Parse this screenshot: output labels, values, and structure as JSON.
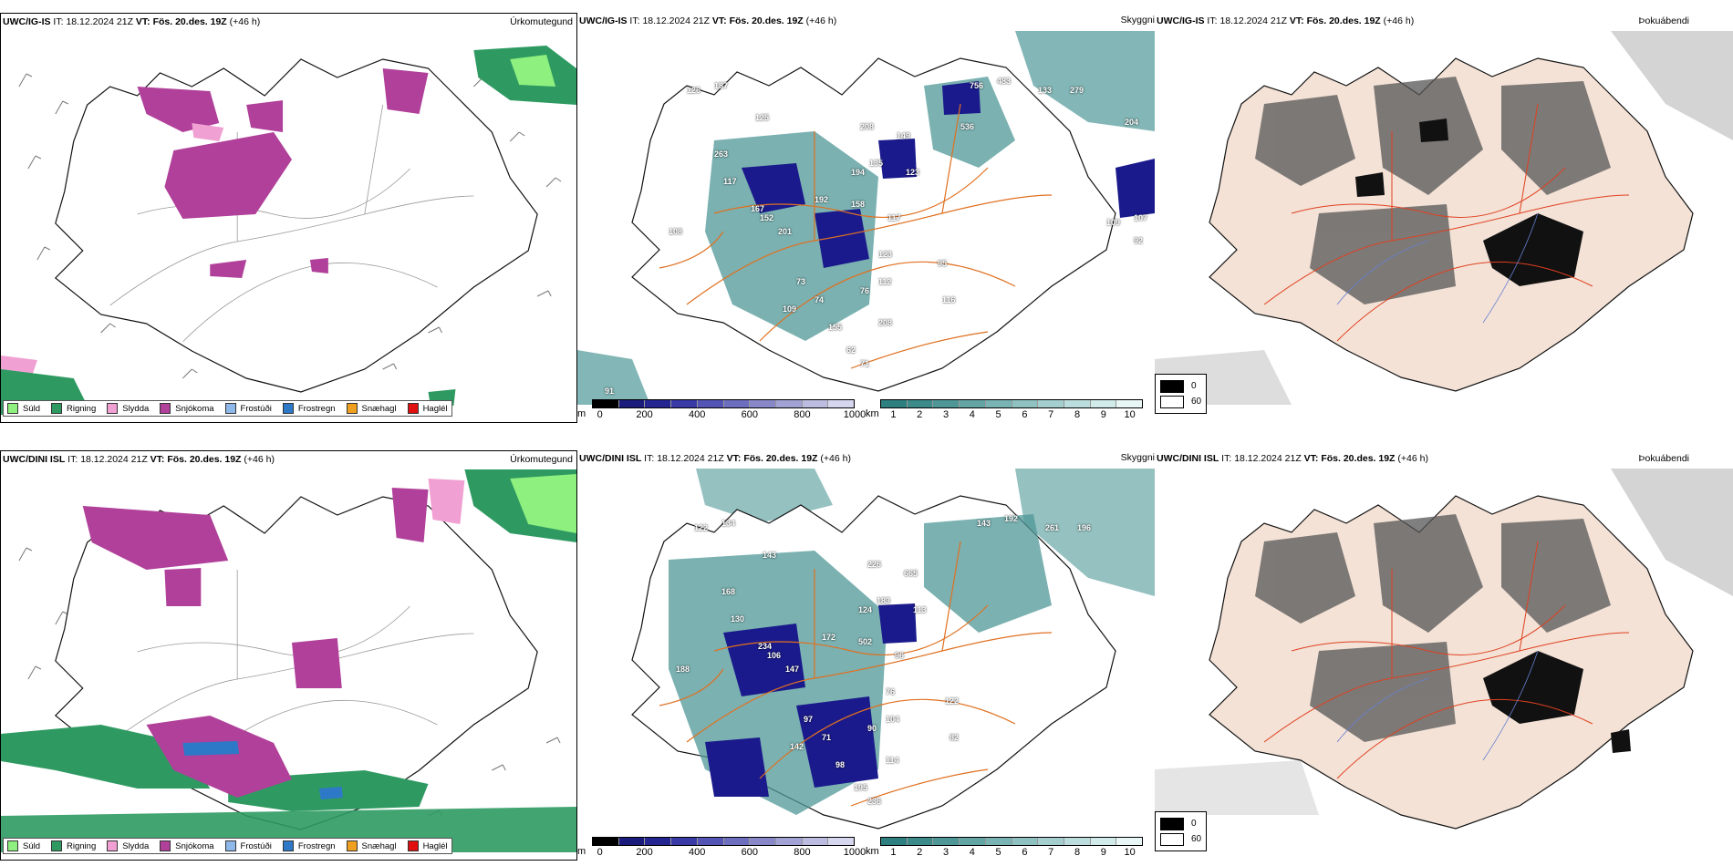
{
  "rows": [
    {
      "model": "UWC/IG-IS",
      "it_label": "IT:",
      "it_value": "18.12.2024 21Z",
      "vt_label": "VT:",
      "vt_value": "Fös. 20.des. 19Z",
      "lead": "(+46 h)",
      "precip_title": "Úrkomutegund",
      "vis_title": "Skyggni",
      "fog_title": "Þokuábendi",
      "elev_labels": [
        "126",
        "187",
        "125",
        "263",
        "117",
        "167",
        "152",
        "201",
        "108",
        "192",
        "158",
        "194",
        "208",
        "135",
        "149",
        "123",
        "117",
        "76",
        "112",
        "73",
        "74",
        "123",
        "95",
        "116",
        "155",
        "208",
        "109",
        "62",
        "71",
        "756",
        "483",
        "133",
        "279",
        "536",
        "204",
        "109",
        "107",
        "92",
        "91"
      ]
    },
    {
      "model": "UWC/DINI ISL",
      "it_label": "IT:",
      "it_value": "18.12.2024 21Z",
      "vt_label": "VT:",
      "vt_value": "Fös. 20.des. 19Z",
      "lead": "(+46 h)",
      "precip_title": "Úrkomutegund",
      "vis_title": "Skyggni",
      "fog_title": "Þokuábendi",
      "elev_labels": [
        "122",
        "134",
        "143",
        "168",
        "130",
        "234",
        "106",
        "147",
        "188",
        "172",
        "502",
        "124",
        "226",
        "183",
        "665",
        "113",
        "96",
        "90",
        "104",
        "97",
        "71",
        "76",
        "122",
        "82",
        "98",
        "114",
        "142",
        "195",
        "236",
        "143",
        "192",
        "261",
        "196"
      ]
    }
  ],
  "precip_legend": [
    {
      "label": "Súld",
      "color": "#8ef07e"
    },
    {
      "label": "Rigning",
      "color": "#2e9a62"
    },
    {
      "label": "Slydda",
      "color": "#f0a0d2"
    },
    {
      "label": "Snjókoma",
      "color": "#b0409a"
    },
    {
      "label": "Frostúði",
      "color": "#8fb8ea"
    },
    {
      "label": "Frostregn",
      "color": "#2e78c8"
    },
    {
      "label": "Snæhagl",
      "color": "#f0a020"
    },
    {
      "label": "Haglél",
      "color": "#e01010"
    }
  ],
  "elev_colorbar": {
    "unit": "m",
    "ticks": [
      "0",
      "200",
      "400",
      "600",
      "800",
      "1000"
    ],
    "colors": [
      "#000000",
      "#1b1b7c",
      "#252591",
      "#3a3aa6",
      "#5454b4",
      "#6e6ebf",
      "#8888c8",
      "#a2a2d4",
      "#bcbce0",
      "#d6d6ee"
    ]
  },
  "vis_colorbar": {
    "unit": "km",
    "ticks": [
      "1",
      "2",
      "3",
      "4",
      "5",
      "6",
      "7",
      "8",
      "9",
      "10"
    ],
    "colors": [
      "#2e7f7f",
      "#3c8a8a",
      "#4f9797",
      "#63a5a5",
      "#79b3b3",
      "#8fc1c1",
      "#a5cfcf",
      "#bbdddd",
      "#d1ebeb",
      "#e8f6f6"
    ]
  },
  "fog_legend": [
    {
      "label": "0",
      "color": "#000000"
    },
    {
      "label": "60",
      "color": "#ffffff"
    }
  ],
  "colors": {
    "coast": "#111111",
    "roads": "#e07020",
    "snow": "#b0409a",
    "rain": "#2e9a62",
    "drizzle": "#8ef07e",
    "sleet": "#f0a0d2",
    "vis_low": "#1a1a8c",
    "vis_teal": "#4f9797",
    "fog_land": "#f4e2d6"
  }
}
